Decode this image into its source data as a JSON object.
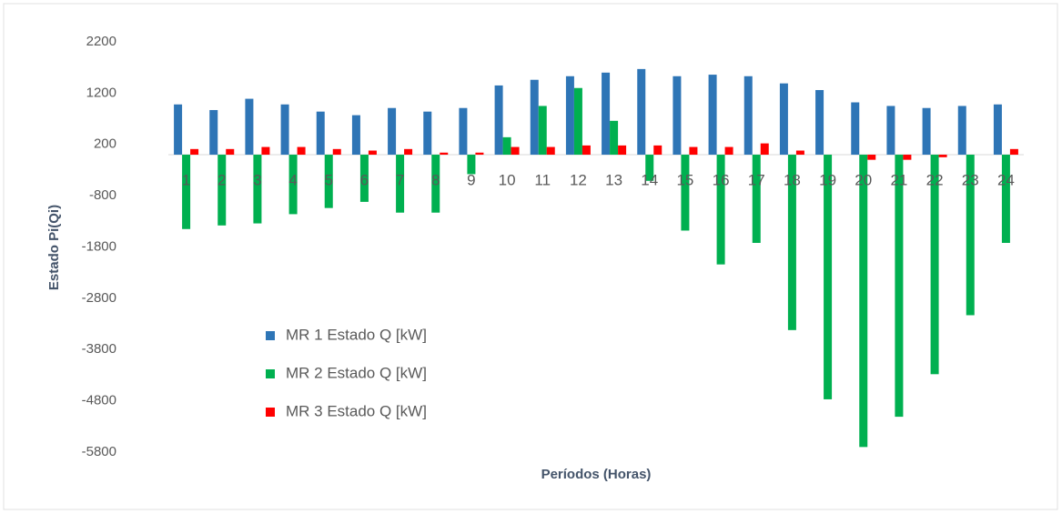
{
  "chart_data": {
    "type": "bar",
    "y_label": "Estado Pi(Qi)",
    "x_label": "Períodos (Horas)",
    "categories": [
      "1",
      "2",
      "3",
      "4",
      "5",
      "6",
      "7",
      "8",
      "9",
      "10",
      "11",
      "12",
      "13",
      "14",
      "15",
      "16",
      "17",
      "18",
      "19",
      "20",
      "21",
      "22",
      "23",
      "24"
    ],
    "series": [
      {
        "name": "MR 1 Estado Q [kW]",
        "color": "#2e75b6",
        "values": [
          980,
          870,
          1090,
          980,
          840,
          770,
          910,
          840,
          910,
          1350,
          1460,
          1530,
          1600,
          1670,
          1530,
          1560,
          1530,
          1390,
          1260,
          1020,
          950,
          910,
          950,
          980
        ]
      },
      {
        "name": "MR 2 Estado Q [kW]",
        "color": "#00b050",
        "values": [
          -1450,
          -1380,
          -1340,
          -1160,
          -1040,
          -920,
          -1130,
          -1130,
          -380,
          340,
          950,
          1300,
          660,
          -510,
          -1480,
          -2140,
          -1720,
          -3420,
          -4770,
          -5700,
          -5110,
          -4280,
          -3130,
          -1720
        ]
      },
      {
        "name": "MR 3 Estado Q [kW]",
        "color": "#ff0000",
        "values": [
          110,
          110,
          150,
          150,
          110,
          80,
          110,
          40,
          40,
          150,
          150,
          180,
          180,
          180,
          150,
          150,
          220,
          80,
          0,
          -100,
          -100,
          -50,
          0,
          110
        ]
      }
    ],
    "ylim": [
      -5800,
      2200
    ],
    "yticks": [
      2200,
      1200,
      200,
      -800,
      -1800,
      -2800,
      -3800,
      -4800,
      -5800
    ],
    "grid": false,
    "legend": "left"
  }
}
